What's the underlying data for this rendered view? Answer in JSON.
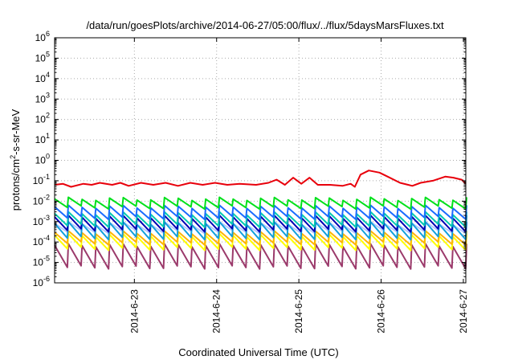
{
  "chart_data": {
    "type": "line",
    "title": "/data/run/goesPlots/archive/2014-06-27/05:00/flux/../flux/5daysMarsFluxes.txt",
    "xlabel": "Coordinated Universal Time (UTC)",
    "ylabel_main": "protons/cm",
    "ylabel_sup": "2",
    "ylabel_rest": "-s-sr-MeV",
    "yscale": "log",
    "ylim_exp": [
      -6,
      6
    ],
    "y_ticks": [
      {
        "base": "10",
        "exp": "-6",
        "value": -6
      },
      {
        "base": "10",
        "exp": "-5",
        "value": -5
      },
      {
        "base": "10",
        "exp": "-4",
        "value": -4
      },
      {
        "base": "10",
        "exp": "-3",
        "value": -3
      },
      {
        "base": "10",
        "exp": "-2",
        "value": -2
      },
      {
        "base": "10",
        "exp": "-1",
        "value": -1
      },
      {
        "base": "10",
        "exp": "0",
        "value": 0
      },
      {
        "base": "10",
        "exp": "1",
        "value": 1
      },
      {
        "base": "10",
        "exp": "2",
        "value": 2
      },
      {
        "base": "10",
        "exp": "3",
        "value": 3
      },
      {
        "base": "10",
        "exp": "4",
        "value": 4
      },
      {
        "base": "10",
        "exp": "5",
        "value": 5
      },
      {
        "base": "10",
        "exp": "6",
        "value": 6
      }
    ],
    "x_range_days": [
      0,
      5
    ],
    "x_ticks": [
      {
        "label": "2014-6-23",
        "day": 0.97
      },
      {
        "label": "2014-6-24",
        "day": 1.97
      },
      {
        "label": "2014-6-25",
        "day": 2.97
      },
      {
        "label": "2014-6-26",
        "day": 3.97
      },
      {
        "label": "2014-6-27",
        "day": 4.97
      }
    ],
    "grid": true,
    "series": [
      {
        "color": "#e8000b",
        "sawtooth": false,
        "points": [
          [
            0,
            -1.2
          ],
          [
            0.1,
            -1.15
          ],
          [
            0.2,
            -1.3
          ],
          [
            0.35,
            -1.15
          ],
          [
            0.45,
            -1.2
          ],
          [
            0.55,
            -1.1
          ],
          [
            0.7,
            -1.2
          ],
          [
            0.8,
            -1.1
          ],
          [
            0.9,
            -1.25
          ],
          [
            1.05,
            -1.1
          ],
          [
            1.2,
            -1.2
          ],
          [
            1.35,
            -1.1
          ],
          [
            1.5,
            -1.25
          ],
          [
            1.65,
            -1.1
          ],
          [
            1.8,
            -1.2
          ],
          [
            1.95,
            -1.1
          ],
          [
            2.1,
            -1.2
          ],
          [
            2.25,
            -1.15
          ],
          [
            2.45,
            -1.2
          ],
          [
            2.6,
            -1.1
          ],
          [
            2.7,
            -0.95
          ],
          [
            2.8,
            -1.2
          ],
          [
            2.9,
            -0.85
          ],
          [
            3.0,
            -1.15
          ],
          [
            3.1,
            -0.85
          ],
          [
            3.2,
            -1.2
          ],
          [
            3.35,
            -1.2
          ],
          [
            3.5,
            -1.25
          ],
          [
            3.6,
            -1.15
          ],
          [
            3.65,
            -1.3
          ],
          [
            3.72,
            -0.7
          ],
          [
            3.82,
            -0.5
          ],
          [
            3.95,
            -0.6
          ],
          [
            4.05,
            -0.8
          ],
          [
            4.2,
            -1.1
          ],
          [
            4.35,
            -1.25
          ],
          [
            4.45,
            -1.1
          ],
          [
            4.6,
            -1.0
          ],
          [
            4.75,
            -0.8
          ],
          [
            4.85,
            -0.85
          ],
          [
            4.95,
            -0.95
          ],
          [
            5.0,
            -1.15
          ]
        ]
      },
      {
        "color": "#00e01a",
        "sawtooth": true,
        "base": -2.1,
        "amp": 0.35,
        "period": 0.167
      },
      {
        "color": "#1a6bff",
        "sawtooth": true,
        "base": -2.55,
        "amp": 0.45,
        "period": 0.167
      },
      {
        "color": "#00c8b4",
        "sawtooth": true,
        "base": -2.9,
        "amp": 0.5,
        "period": 0.167
      },
      {
        "color": "#0000b4",
        "sawtooth": true,
        "base": -3.1,
        "amp": 0.55,
        "period": 0.167
      },
      {
        "color": "#12a0dc",
        "sawtooth": true,
        "base": -3.45,
        "amp": 0.6,
        "period": 0.167
      },
      {
        "color": "#b4c8ff",
        "sawtooth": true,
        "base": -3.3,
        "amp": 0.35,
        "period": 0.167
      },
      {
        "color": "#ffb400",
        "sawtooth": true,
        "base": -3.8,
        "amp": 0.45,
        "period": 0.167
      },
      {
        "color": "#ffff00",
        "sawtooth": true,
        "base": -4.0,
        "amp": 0.55,
        "period": 0.167
      },
      {
        "color": "#9b3a6b",
        "sawtooth": true,
        "base": -4.7,
        "amp": 0.9,
        "period": 0.167
      }
    ]
  }
}
